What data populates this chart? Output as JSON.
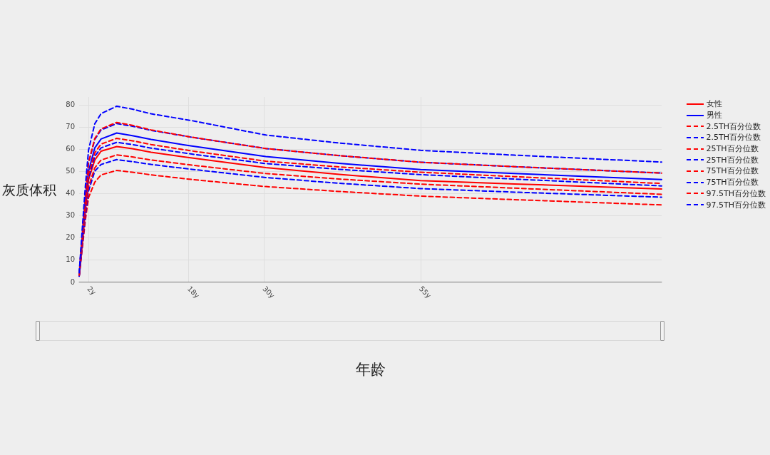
{
  "chart_data": {
    "type": "line",
    "xlabel": "年龄",
    "ylabel": "灰质体积",
    "x": [
      0.51,
      1,
      1.5,
      2,
      3,
      4,
      6.5,
      9,
      12,
      18.5,
      30.3,
      42,
      55,
      70,
      93.5
    ],
    "xlim": [
      0.5,
      93.5
    ],
    "xticks": [
      {
        "value": 2,
        "label": "2y"
      },
      {
        "value": 18,
        "label": "18y"
      },
      {
        "value": 30,
        "label": "30y"
      },
      {
        "value": 55,
        "label": "55y"
      }
    ],
    "ylim": [
      0,
      83.5
    ],
    "yticks": [
      0,
      10,
      20,
      30,
      40,
      50,
      60,
      70,
      80
    ],
    "grid": true,
    "legend": "right",
    "marker": "none",
    "series": [
      {
        "name": "女性",
        "color": "#ff0000",
        "line_style": "solid",
        "values": [
          3,
          18,
          34,
          46,
          55,
          59,
          61.1,
          60.1,
          58.5,
          55.9,
          51.6,
          48.5,
          45.7,
          44.2,
          41.9
        ]
      },
      {
        "name": "男性",
        "color": "#0000ff",
        "line_style": "solid",
        "values": [
          3,
          20,
          37,
          50,
          60.5,
          64.5,
          67.2,
          66,
          64.3,
          61.3,
          56.6,
          53.5,
          50.7,
          48.9,
          46.2
        ]
      },
      {
        "name": "2.5TH百分位数",
        "color": "#ff0000",
        "line_style": "dashed",
        "values": [
          2.5,
          15,
          28,
          38,
          45,
          48.3,
          50.3,
          49.5,
          48.3,
          46.2,
          43,
          40.8,
          38.7,
          37.1,
          34.7
        ]
      },
      {
        "name": "2.5TH百分位数",
        "color": "#0000ff",
        "line_style": "dashed",
        "values": [
          2.5,
          16.5,
          30,
          41,
          50,
          53,
          55.2,
          54.3,
          53,
          50.8,
          47.1,
          44.5,
          42.1,
          40.5,
          38.2
        ]
      },
      {
        "name": "25TH百分位数",
        "color": "#ff0000",
        "line_style": "dashed",
        "values": [
          3,
          17,
          31.5,
          43,
          51.5,
          55,
          57.3,
          56.4,
          55,
          52.7,
          48.9,
          46.4,
          44.1,
          42.3,
          39.5
        ]
      },
      {
        "name": "25TH百分位数",
        "color": "#0000ff",
        "line_style": "dashed",
        "values": [
          3,
          19,
          35,
          47,
          56.7,
          60.5,
          63,
          62,
          60.4,
          57.7,
          53.4,
          50.8,
          48.4,
          46.4,
          43.3
        ]
      },
      {
        "name": "75TH百分位数",
        "color": "#ff0000",
        "line_style": "dashed",
        "values": [
          3,
          19.5,
          35.5,
          48.5,
          58.3,
          62.2,
          64.8,
          63.7,
          62,
          59.1,
          54.5,
          51.9,
          49.5,
          47.5,
          44.4
        ]
      },
      {
        "name": "75TH百分位数",
        "color": "#0000ff",
        "line_style": "dashed",
        "values": [
          3.5,
          21.5,
          39,
          53.5,
          64.3,
          68.6,
          71.5,
          70.3,
          68.4,
          65.3,
          60.2,
          57,
          54,
          52,
          49.1
        ]
      },
      {
        "name": "97.5TH百分位数",
        "color": "#ff0000",
        "line_style": "dashed",
        "values": [
          3.5,
          21.5,
          39.5,
          54,
          64.8,
          69.1,
          72,
          70.7,
          68.6,
          65.3,
          60.2,
          57,
          54,
          52,
          49.1
        ]
      },
      {
        "name": "97.5TH百分位数",
        "color": "#0000ff",
        "line_style": "dashed",
        "values": [
          4,
          24,
          43.5,
          59.5,
          71.4,
          76,
          79.3,
          78,
          75.9,
          72.8,
          66.3,
          62.7,
          59.4,
          57.2,
          54.1
        ]
      }
    ]
  }
}
